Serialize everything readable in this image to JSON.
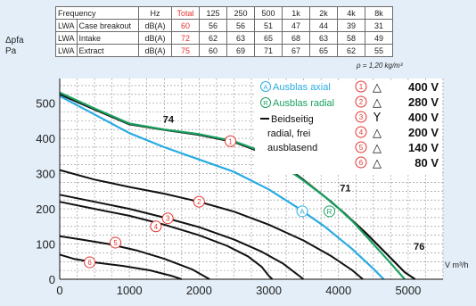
{
  "table": {
    "header": [
      "Frequency",
      "Hz",
      "Total",
      "125",
      "250",
      "500",
      "1k",
      "2k",
      "4k",
      "8k"
    ],
    "rows": [
      {
        "sym": "LWA",
        "name": "Case breakout",
        "unit": "dB(A)",
        "total": "60",
        "vals": [
          "56",
          "56",
          "51",
          "47",
          "44",
          "39",
          "31"
        ]
      },
      {
        "sym": "LWA",
        "name": "Intake",
        "unit": "dB(A)",
        "total": "72",
        "vals": [
          "62",
          "63",
          "65",
          "68",
          "63",
          "58",
          "49"
        ]
      },
      {
        "sym": "LWA",
        "name": "Extract",
        "unit": "dB(A)",
        "total": "75",
        "vals": [
          "60",
          "69",
          "71",
          "67",
          "65",
          "62",
          "55"
        ]
      }
    ]
  },
  "y_axis_label": [
    "Δpfa",
    "Pa"
  ],
  "rho_note": "ρ = 1,20 kg/m³",
  "colors": {
    "background": "#e3eef8",
    "plot": "#ffffff",
    "axial": "#29abe2",
    "radial": "#1aa060",
    "marker": "#e3342f",
    "black": "#111111"
  },
  "chart_data": {
    "type": "line",
    "xlabel": "V m³/h",
    "xlim": [
      0,
      5500
    ],
    "ylim": [
      0,
      570
    ],
    "xticks": [
      0,
      1000,
      2000,
      3000,
      4000,
      5000
    ],
    "yticks": [
      0,
      100,
      200,
      300,
      400,
      500
    ],
    "legend": {
      "axial": "Ausblas axial",
      "radial": "Ausblas radial",
      "free": [
        "Beidseitig",
        "radial, frei",
        "ausblasend"
      ],
      "marker_A": "A",
      "marker_R": "R",
      "speeds": [
        {
          "n": "1",
          "symbol": "△",
          "voltage": "400 V"
        },
        {
          "n": "2",
          "symbol": "△",
          "voltage": "280 V"
        },
        {
          "n": "3",
          "symbol": "Y",
          "voltage": "400 V"
        },
        {
          "n": "4",
          "symbol": "△",
          "voltage": "200 V"
        },
        {
          "n": "5",
          "symbol": "△",
          "voltage": "140 V"
        },
        {
          "n": "6",
          "symbol": "△",
          "voltage": "80 V"
        }
      ]
    },
    "annotations": [
      {
        "text": "74",
        "x": 1480,
        "y": 445
      },
      {
        "text": "70",
        "x": 2900,
        "y": 385
      },
      {
        "text": "71",
        "x": 4020,
        "y": 250
      },
      {
        "text": "76",
        "x": 5080,
        "y": 83
      }
    ],
    "series": [
      {
        "id": "free",
        "color": "#111111",
        "width": 2.2,
        "points": [
          [
            0,
            525
          ],
          [
            500,
            482
          ],
          [
            1000,
            440
          ],
          [
            1500,
            424
          ],
          [
            2000,
            410
          ],
          [
            2500,
            390
          ],
          [
            2900,
            360
          ],
          [
            3200,
            325
          ],
          [
            3500,
            282
          ],
          [
            3800,
            235
          ],
          [
            4100,
            185
          ],
          [
            4400,
            130
          ],
          [
            4700,
            70
          ],
          [
            4950,
            20
          ],
          [
            5100,
            0
          ]
        ]
      },
      {
        "id": "radial",
        "color": "#1aa060",
        "width": 2.2,
        "points": [
          [
            0,
            530
          ],
          [
            500,
            485
          ],
          [
            1000,
            442
          ],
          [
            1500,
            425
          ],
          [
            2000,
            412
          ],
          [
            2500,
            392
          ],
          [
            2800,
            370
          ],
          [
            3100,
            335
          ],
          [
            3500,
            280
          ],
          [
            3900,
            220
          ],
          [
            4200,
            165
          ],
          [
            4500,
            100
          ],
          [
            4750,
            45
          ],
          [
            4950,
            0
          ]
        ]
      },
      {
        "id": "axial",
        "color": "#29abe2",
        "width": 2.2,
        "points": [
          [
            0,
            520
          ],
          [
            500,
            468
          ],
          [
            1000,
            415
          ],
          [
            1500,
            375
          ],
          [
            2000,
            340
          ],
          [
            2500,
            305
          ],
          [
            3000,
            255
          ],
          [
            3400,
            205
          ],
          [
            3800,
            150
          ],
          [
            4200,
            85
          ],
          [
            4500,
            30
          ],
          [
            4650,
            0
          ]
        ]
      },
      {
        "id": "s2",
        "color": "#111111",
        "width": 2.0,
        "points": [
          [
            0,
            310
          ],
          [
            500,
            283
          ],
          [
            1000,
            262
          ],
          [
            1500,
            243
          ],
          [
            2000,
            220
          ],
          [
            2500,
            192
          ],
          [
            3000,
            155
          ],
          [
            3500,
            110
          ],
          [
            3900,
            65
          ],
          [
            4200,
            25
          ],
          [
            4350,
            0
          ]
        ]
      },
      {
        "id": "s3",
        "color": "#111111",
        "width": 2.0,
        "points": [
          [
            0,
            240
          ],
          [
            500,
            220
          ],
          [
            1000,
            200
          ],
          [
            1500,
            175
          ],
          [
            2000,
            148
          ],
          [
            2500,
            113
          ],
          [
            2900,
            78
          ],
          [
            3200,
            45
          ],
          [
            3400,
            15
          ],
          [
            3500,
            0
          ]
        ]
      },
      {
        "id": "s4",
        "color": "#111111",
        "width": 2.0,
        "points": [
          [
            0,
            220
          ],
          [
            500,
            200
          ],
          [
            1000,
            180
          ],
          [
            1500,
            155
          ],
          [
            2000,
            125
          ],
          [
            2400,
            95
          ],
          [
            2700,
            65
          ],
          [
            2900,
            35
          ],
          [
            3000,
            10
          ],
          [
            3050,
            0
          ]
        ]
      },
      {
        "id": "s5",
        "color": "#111111",
        "width": 2.0,
        "points": [
          [
            0,
            122
          ],
          [
            300,
            113
          ],
          [
            700,
            100
          ],
          [
            1100,
            82
          ],
          [
            1500,
            58
          ],
          [
            1900,
            28
          ],
          [
            2150,
            0
          ]
        ]
      },
      {
        "id": "s6",
        "color": "#111111",
        "width": 2.0,
        "points": [
          [
            0,
            70
          ],
          [
            200,
            58
          ],
          [
            500,
            48
          ],
          [
            900,
            38
          ],
          [
            1300,
            25
          ],
          [
            1600,
            10
          ],
          [
            1750,
            0
          ]
        ]
      }
    ],
    "markers": [
      {
        "label": "1",
        "x": 2450,
        "y": 392,
        "style": "speed"
      },
      {
        "label": "2",
        "x": 2000,
        "y": 220,
        "style": "speed"
      },
      {
        "label": "3",
        "x": 1550,
        "y": 173,
        "style": "speed"
      },
      {
        "label": "4",
        "x": 1380,
        "y": 150,
        "style": "speed"
      },
      {
        "label": "5",
        "x": 800,
        "y": 104,
        "style": "speed"
      },
      {
        "label": "6",
        "x": 430,
        "y": 48,
        "style": "speed"
      },
      {
        "label": "A",
        "x": 3480,
        "y": 193,
        "style": "axial"
      },
      {
        "label": "R",
        "x": 3870,
        "y": 193,
        "style": "radial"
      }
    ]
  }
}
